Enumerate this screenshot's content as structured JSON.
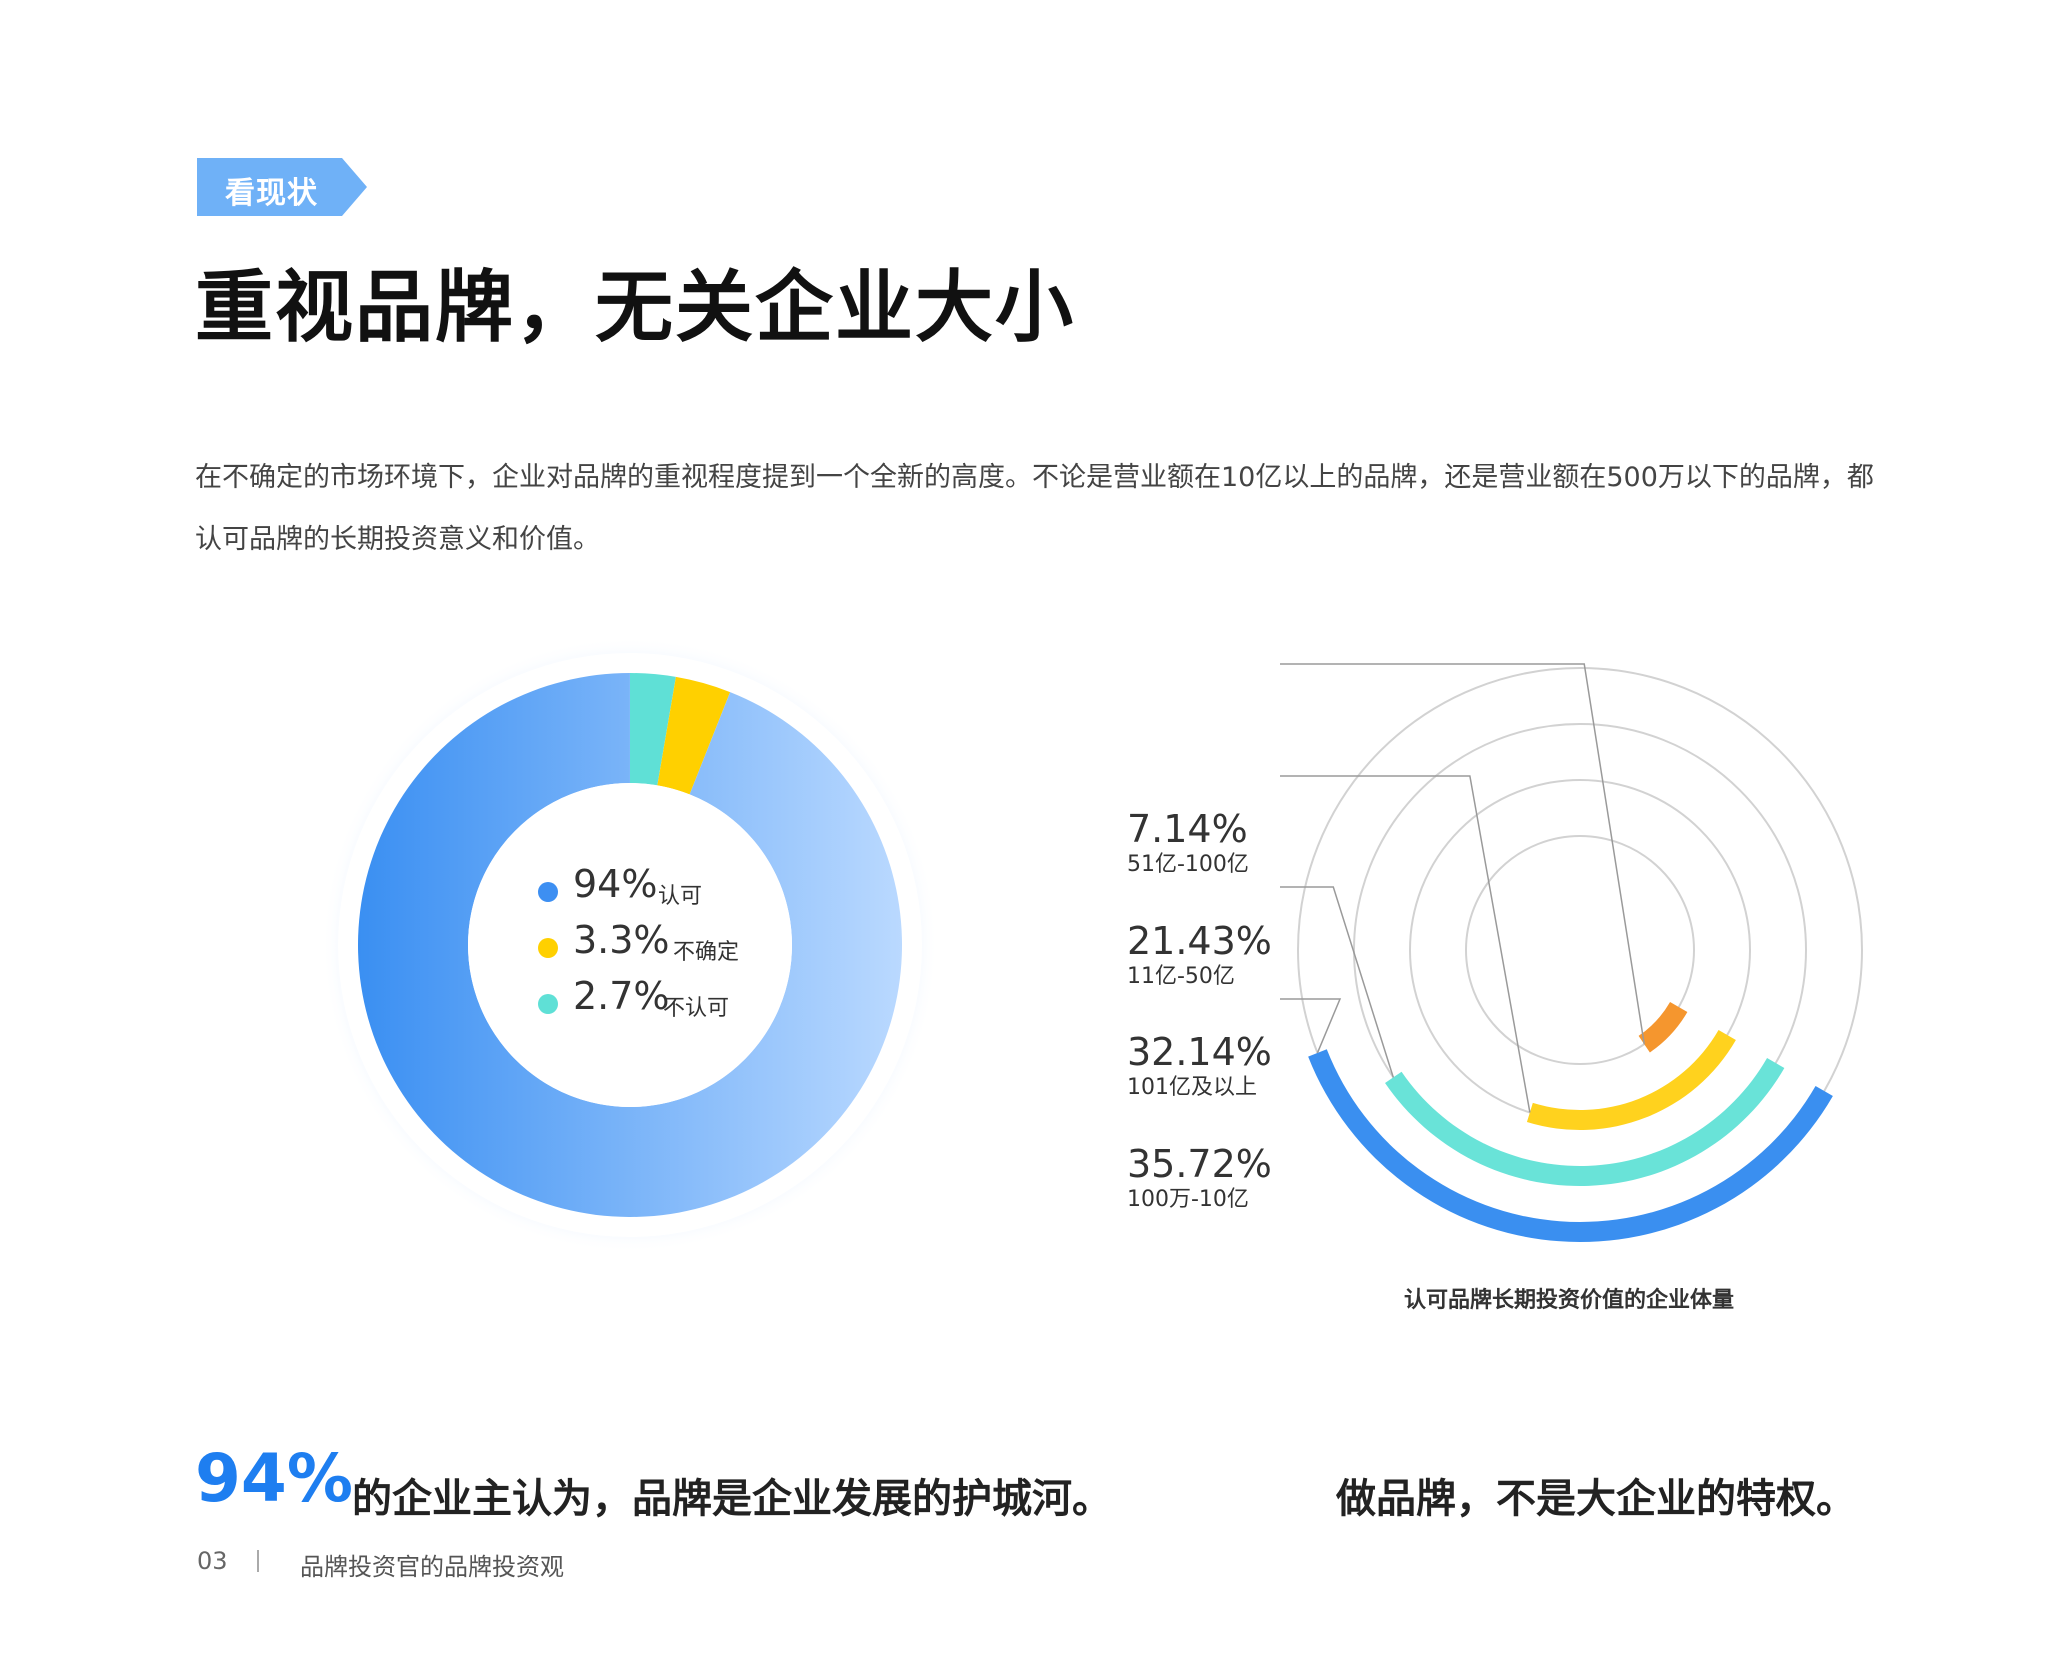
{
  "tag": {
    "label": "看现状",
    "color": "#6fb1f7"
  },
  "title": "重视品牌，无关企业大小",
  "intro": "在不确定的市场环境下，企业对品牌的重视程度提到一个全新的高度。不论是营业额在10亿以上的品牌，还是营业额在500万以下的品牌，都认可品牌的长期投资意义和价值。",
  "donut_legend": [
    {
      "value": "94%",
      "label": "认可",
      "color": "#3d8ff2"
    },
    {
      "value": "3.3%",
      "label": "不确定",
      "color": "#ffd000"
    },
    {
      "value": "2.7%",
      "label": "不认可",
      "color": "#5fe0d6"
    }
  ],
  "radial_labels": [
    {
      "pct": "7.14%",
      "category": "51亿-100亿",
      "color": "#f5962e"
    },
    {
      "pct": "21.43%",
      "category": "11亿-50亿",
      "color": "#ffd21e"
    },
    {
      "pct": "32.14%",
      "category": "101亿及以上",
      "color": "#69e3d8"
    },
    {
      "pct": "35.72%",
      "category": "100万-10亿",
      "color": "#3a8ff0"
    }
  ],
  "radial_caption": "认可品牌长期投资价值的企业体量",
  "takeaway": {
    "big": "94%",
    "text": "的企业主认为，品牌是企业发展的护城河。",
    "right": "做品牌，不是大企业的特权。"
  },
  "footer": {
    "page": "03",
    "text": "品牌投资官的品牌投资观"
  },
  "chart_data": [
    {
      "type": "pie",
      "categories": [
        "认可",
        "不确定",
        "不认可"
      ],
      "values": [
        94,
        3.3,
        2.7
      ],
      "colors": [
        "#3d8ff2",
        "#ffd000",
        "#5fe0d6"
      ],
      "style": "donut"
    },
    {
      "type": "bar",
      "style": "radial",
      "title": "认可品牌长期投资价值的企业体量",
      "categories": [
        "51亿-100亿",
        "11亿-50亿",
        "101亿及以上",
        "100万-10亿"
      ],
      "values": [
        7.14,
        21.43,
        32.14,
        35.72
      ],
      "colors": [
        "#f5962e",
        "#ffd21e",
        "#69e3d8",
        "#3a8ff0"
      ],
      "unit": "%"
    }
  ]
}
